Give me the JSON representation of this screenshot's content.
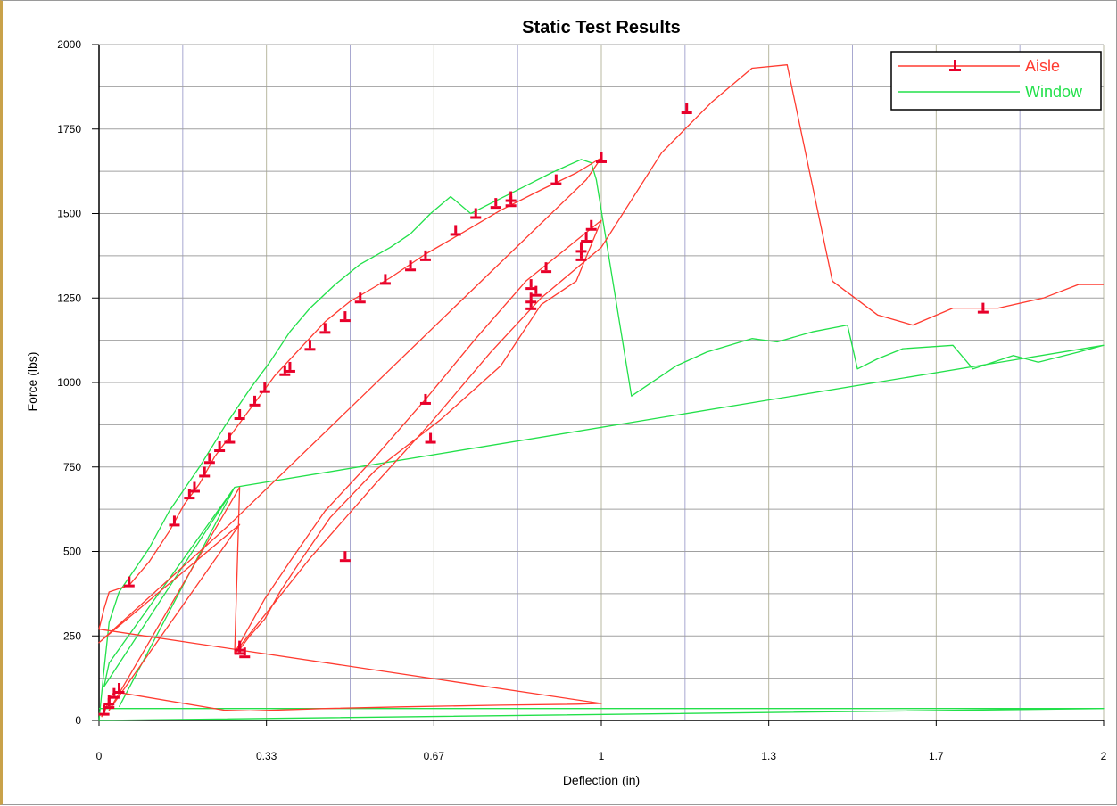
{
  "chart_data": {
    "type": "line",
    "title": "Static Test Results",
    "xlabel": "Deflection (in)",
    "ylabel": "Force (lbs)",
    "xlim": [
      0,
      2
    ],
    "ylim": [
      0,
      2000
    ],
    "x_ticks": [
      "0",
      "0.33",
      "0.67",
      "1",
      "1.3",
      "1.7",
      "2"
    ],
    "y_ticks": [
      "0",
      "250",
      "500",
      "750",
      "1000",
      "1250",
      "1500",
      "1750",
      "2000"
    ],
    "grid": true,
    "legend_position": "top-right",
    "series": [
      {
        "name": "Aisle",
        "color": "#ff3b30",
        "marker_color": "#e8002a",
        "x": [
          0.005,
          0.012,
          0.02,
          0.03,
          0.25,
          0.3,
          0.45,
          0.6,
          0.8,
          0.95,
          1.0,
          0.0,
          0.01,
          0.02,
          0.06,
          0.1,
          0.14,
          0.17,
          0.2,
          0.23,
          0.27,
          0.31,
          0.35,
          0.4,
          0.45,
          0.5,
          0.58,
          0.65,
          0.72,
          0.8,
          0.88,
          0.95,
          1.0,
          0.97,
          0.26,
          0.0,
          0.28,
          0.02,
          0.04,
          0.28,
          0.27,
          0.33,
          0.38,
          0.45,
          0.55,
          0.65,
          0.75,
          0.85,
          0.95,
          1.0,
          0.95,
          0.88,
          0.8,
          0.68,
          0.55,
          0.46,
          0.4,
          0.36,
          0.33,
          0.3,
          0.28,
          0.27,
          0.42,
          0.55,
          0.66,
          0.78,
          0.88,
          1.0,
          1.12,
          1.22,
          1.3,
          1.37,
          1.46,
          1.55,
          1.62,
          1.7,
          1.79,
          1.88,
          1.95,
          2.0
        ],
        "y": [
          10,
          30,
          60,
          85,
          30,
          28,
          35,
          40,
          45,
          48,
          50,
          270,
          330,
          380,
          400,
          470,
          560,
          640,
          700,
          780,
          860,
          940,
          1020,
          1100,
          1180,
          1240,
          1310,
          1380,
          1440,
          1510,
          1570,
          1620,
          1665,
          1600,
          580,
          230,
          580,
          30,
          80,
          690,
          200,
          360,
          470,
          620,
          780,
          950,
          1130,
          1300,
          1420,
          1480,
          1300,
          1230,
          1050,
          890,
          740,
          600,
          470,
          380,
          300,
          250,
          210,
          200,
          480,
          700,
          880,
          1090,
          1250,
          1400,
          1680,
          1830,
          1930,
          1940,
          1300,
          1200,
          1170,
          1220,
          1220,
          1250,
          1290,
          1290
        ]
      },
      {
        "name": "Window",
        "color": "#22e04a",
        "x": [
          0.0,
          0.5,
          1.0,
          1.5,
          2.0,
          0.0,
          0.01,
          0.02,
          0.04,
          0.1,
          0.14,
          0.2,
          0.25,
          0.3,
          0.34,
          0.38,
          0.42,
          0.47,
          0.52,
          0.58,
          0.62,
          0.66,
          0.7,
          0.74,
          0.78,
          0.82,
          0.86,
          0.9,
          0.93,
          0.96,
          0.98,
          0.99,
          1.06,
          1.15,
          1.21,
          1.3,
          1.35,
          1.42,
          1.49,
          1.51,
          1.55,
          1.6,
          1.7,
          1.74,
          1.82,
          1.87,
          1.95,
          2.0,
          0.27,
          0.02,
          0.01,
          0.27,
          0.04
        ],
        "y": [
          35,
          35,
          35,
          35,
          35,
          0,
          150,
          290,
          380,
          510,
          620,
          750,
          870,
          980,
          1060,
          1150,
          1220,
          1290,
          1350,
          1400,
          1440,
          1500,
          1550,
          1500,
          1530,
          1560,
          1590,
          1620,
          1640,
          1660,
          1650,
          1600,
          960,
          1050,
          1090,
          1130,
          1120,
          1150,
          1170,
          1040,
          1070,
          1100,
          1110,
          1040,
          1080,
          1060,
          1090,
          1110,
          690,
          170,
          100,
          690,
          40
        ]
      }
    ],
    "aisle_marker_points": [
      {
        "x": 0.06,
        "y": 410
      },
      {
        "x": 0.15,
        "y": 590
      },
      {
        "x": 0.18,
        "y": 670
      },
      {
        "x": 0.19,
        "y": 690
      },
      {
        "x": 0.21,
        "y": 735
      },
      {
        "x": 0.22,
        "y": 775
      },
      {
        "x": 0.24,
        "y": 810
      },
      {
        "x": 0.26,
        "y": 835
      },
      {
        "x": 0.28,
        "y": 905
      },
      {
        "x": 0.31,
        "y": 945
      },
      {
        "x": 0.33,
        "y": 985
      },
      {
        "x": 0.37,
        "y": 1035
      },
      {
        "x": 0.38,
        "y": 1045
      },
      {
        "x": 0.42,
        "y": 1110
      },
      {
        "x": 0.45,
        "y": 1160
      },
      {
        "x": 0.49,
        "y": 1195
      },
      {
        "x": 0.52,
        "y": 1250
      },
      {
        "x": 0.57,
        "y": 1305
      },
      {
        "x": 0.62,
        "y": 1345
      },
      {
        "x": 0.65,
        "y": 1375
      },
      {
        "x": 0.71,
        "y": 1450
      },
      {
        "x": 0.75,
        "y": 1500
      },
      {
        "x": 0.79,
        "y": 1530
      },
      {
        "x": 0.82,
        "y": 1535
      },
      {
        "x": 0.82,
        "y": 1550
      },
      {
        "x": 0.91,
        "y": 1600
      },
      {
        "x": 1.0,
        "y": 1665
      },
      {
        "x": 1.17,
        "y": 1810
      },
      {
        "x": 1.76,
        "y": 1220
      },
      {
        "x": 0.28,
        "y": 210
      },
      {
        "x": 0.28,
        "y": 220
      },
      {
        "x": 0.29,
        "y": 200
      },
      {
        "x": 0.49,
        "y": 485
      },
      {
        "x": 0.66,
        "y": 835
      },
      {
        "x": 0.65,
        "y": 950
      },
      {
        "x": 0.86,
        "y": 1230
      },
      {
        "x": 0.86,
        "y": 1250
      },
      {
        "x": 0.87,
        "y": 1270
      },
      {
        "x": 0.86,
        "y": 1290
      },
      {
        "x": 0.89,
        "y": 1340
      },
      {
        "x": 0.96,
        "y": 1375
      },
      {
        "x": 0.96,
        "y": 1400
      },
      {
        "x": 0.97,
        "y": 1430
      },
      {
        "x": 0.98,
        "y": 1465
      },
      {
        "x": 0.02,
        "y": 60
      },
      {
        "x": 0.03,
        "y": 80
      },
      {
        "x": 0.04,
        "y": 95
      },
      {
        "x": 0.01,
        "y": 30
      },
      {
        "x": 0.02,
        "y": 50
      }
    ],
    "legend": [
      {
        "label": "Aisle",
        "color": "#ff3b30"
      },
      {
        "label": "Window",
        "color": "#22e04a"
      }
    ]
  }
}
